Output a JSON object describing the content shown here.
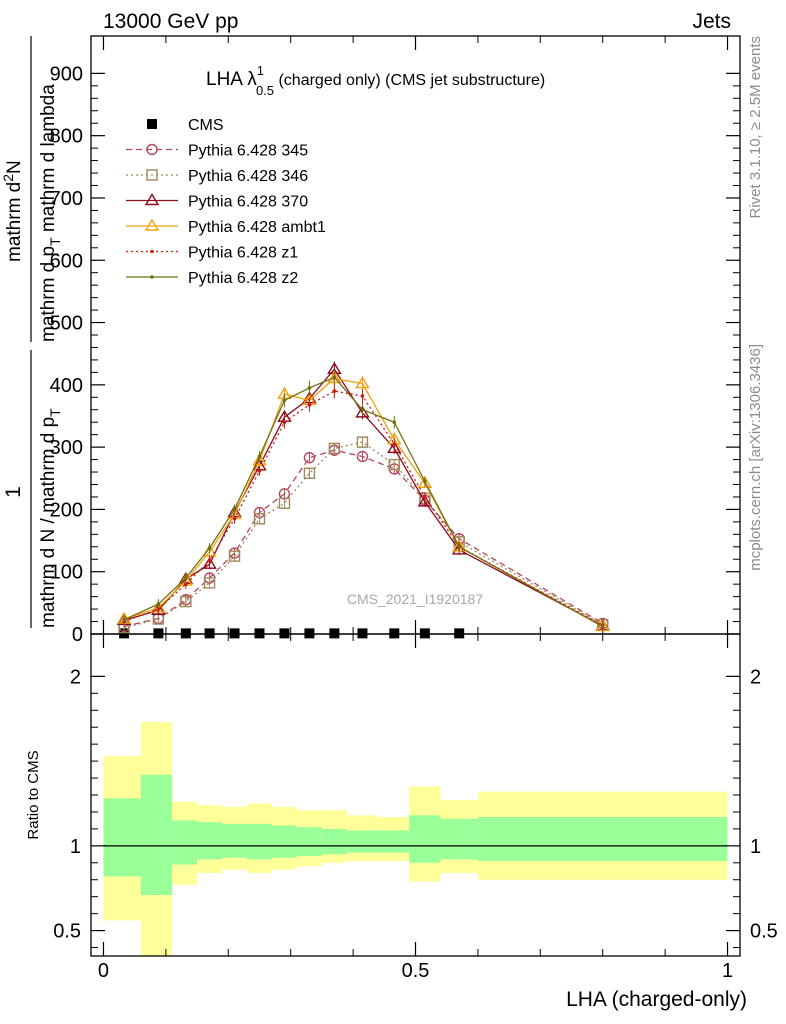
{
  "header": {
    "left": "13000 GeV pp",
    "right": "Jets"
  },
  "side_labels": {
    "rivet": "Rivet 3.1.10, ≥ 2.5M events",
    "mcplots": "mcplots.cern.ch [arXiv:1306.3436]"
  },
  "watermark": "CMS_2021_I1920187",
  "chart_data": [
    {
      "type": "line",
      "title_main": "LHA λ",
      "title_sup": "1",
      "title_sub": "0.5",
      "title_rest": " (charged only) (CMS jet substructure)",
      "ylabel_numer": "1",
      "ylabel_denom": "mathrm d N / mathrm d p",
      "ylabel_denom_sub": "T",
      "ylabel_numer2": "mathrm d",
      "ylabel_numer2_sup": "2",
      "ylabel_numer2_tail": "N",
      "ylabel_denom2": "mathrm d p",
      "ylabel_denom2_sub": "T",
      "ylabel_denom2_tail": " mathrm d lambda",
      "xlim": [
        -0.02,
        1.02
      ],
      "ylim": [
        0,
        960
      ],
      "y_ticks": [
        0,
        100,
        200,
        300,
        400,
        500,
        600,
        700,
        800,
        900
      ],
      "legend_position": "top-left",
      "x": [
        0.033,
        0.088,
        0.132,
        0.17,
        0.21,
        0.25,
        0.29,
        0.33,
        0.37,
        0.415,
        0.466,
        0.515,
        0.57,
        0.8
      ],
      "series": [
        {
          "name": "CMS",
          "color": "#000000",
          "marker": "square-filled",
          "line": "none",
          "values": [
            1.0,
            1.0,
            1.0,
            1.0,
            1.0,
            1.0,
            1.0,
            1.0,
            1.0,
            1.0,
            1.0,
            1.0,
            1.0,
            null
          ]
        },
        {
          "name": "Pythia 6.428 345",
          "color": "#b5475a",
          "marker": "circle-open",
          "line": "dashed",
          "values": [
            12,
            25,
            55,
            90,
            130,
            195,
            225,
            283,
            295,
            285,
            265,
            215,
            153,
            17
          ]
        },
        {
          "name": "Pythia 6.428 346",
          "color": "#a0885a",
          "marker": "square-open",
          "line": "dotted",
          "values": [
            10,
            24,
            52,
            82,
            125,
            185,
            210,
            258,
            298,
            308,
            272,
            218,
            148,
            15
          ]
        },
        {
          "name": "Pythia 6.428 370",
          "color": "#8c0a1c",
          "marker": "triangle-open",
          "line": "solid",
          "values": [
            22,
            38,
            88,
            112,
            195,
            270,
            348,
            378,
            425,
            355,
            298,
            212,
            135,
            13
          ]
        },
        {
          "name": "Pythia 6.428 ambt1",
          "color": "#f0a010",
          "marker": "triangle-open",
          "line": "solid",
          "values": [
            24,
            42,
            85,
            132,
            192,
            278,
            385,
            375,
            410,
            402,
            312,
            242,
            140,
            12
          ]
        },
        {
          "name": "Pythia 6.428 z1",
          "color": "#cc1a10",
          "marker": "dot",
          "line": "dotted",
          "values": [
            20,
            40,
            80,
            118,
            185,
            262,
            340,
            368,
            390,
            382,
            305,
            220,
            140,
            14
          ]
        },
        {
          "name": "Pythia 6.428 z2",
          "color": "#707010",
          "marker": "dot",
          "line": "solid",
          "values": [
            23,
            48,
            90,
            138,
            200,
            285,
            375,
            395,
            412,
            360,
            340,
            245,
            140,
            12
          ]
        }
      ]
    },
    {
      "type": "area",
      "ylabel": "Ratio to CMS",
      "xlabel": "LHA (charged-only)",
      "xlim": [
        -0.02,
        1.02
      ],
      "ylim": [
        0.35,
        2.25
      ],
      "y_ticks": [
        0.5,
        1,
        2
      ],
      "y_tick_labels": [
        "0.5",
        "1",
        "2"
      ],
      "x_ticks": [
        0,
        0.5,
        1
      ],
      "x_tick_labels": [
        "0",
        "0.5",
        "1"
      ],
      "reference_line": 1,
      "bin_edges": [
        0.0,
        0.06,
        0.11,
        0.15,
        0.19,
        0.23,
        0.27,
        0.31,
        0.35,
        0.39,
        0.44,
        0.49,
        0.54,
        0.6,
        1.0
      ],
      "band_1sigma": {
        "color": "#99ff99",
        "low": [
          0.82,
          0.71,
          0.89,
          0.92,
          0.93,
          0.92,
          0.93,
          0.94,
          0.95,
          0.96,
          0.96,
          0.9,
          0.92,
          0.91
        ],
        "high": [
          1.28,
          1.42,
          1.15,
          1.14,
          1.13,
          1.13,
          1.12,
          1.11,
          1.1,
          1.09,
          1.09,
          1.18,
          1.16,
          1.17
        ]
      },
      "band_2sigma": {
        "color": "#ffff99",
        "low": [
          0.56,
          0.3,
          0.77,
          0.84,
          0.86,
          0.84,
          0.86,
          0.88,
          0.9,
          0.91,
          0.91,
          0.79,
          0.84,
          0.8
        ],
        "high": [
          1.53,
          1.73,
          1.26,
          1.24,
          1.23,
          1.25,
          1.23,
          1.21,
          1.21,
          1.18,
          1.17,
          1.35,
          1.27,
          1.32
        ]
      }
    }
  ]
}
